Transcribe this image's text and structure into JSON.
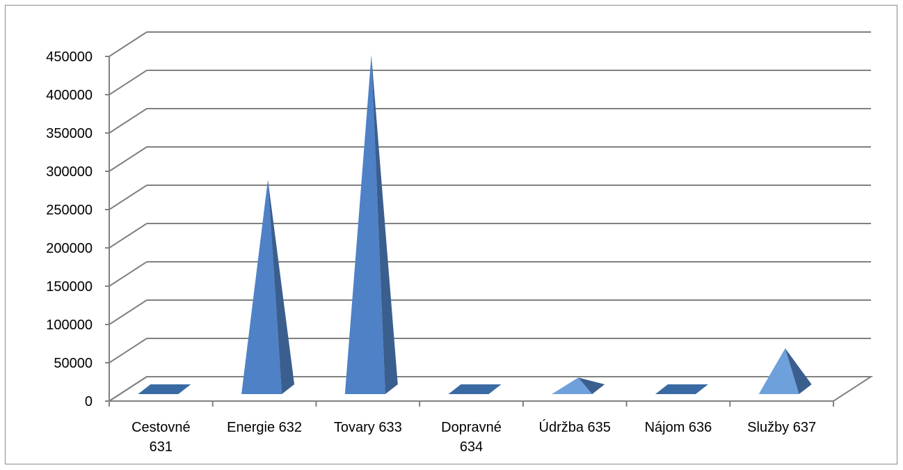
{
  "chart_data": {
    "type": "bar",
    "shape": "3d-pyramid",
    "categories": [
      [
        "Cestovné",
        "631"
      ],
      [
        "Energie 632"
      ],
      [
        "Tovary 633"
      ],
      [
        "Dopravné",
        "634"
      ],
      [
        "Údržba 635"
      ],
      [
        "Nájom 636"
      ],
      [
        "Služby 637"
      ]
    ],
    "values": [
      600,
      272000,
      430000,
      600,
      21000,
      600,
      58000
    ],
    "ylim": [
      0,
      450000
    ],
    "ytick_step": 50000,
    "yticks": [
      "0",
      "50000",
      "100000",
      "150000",
      "200000",
      "250000",
      "300000",
      "350000",
      "400000",
      "450000"
    ],
    "grid": true,
    "legend": "none",
    "colors": {
      "front": "#4f81c7",
      "side": "#3a5f8f",
      "light": "#6ea0dc",
      "grid": "#808080",
      "flat": "#3a6aa3"
    }
  }
}
